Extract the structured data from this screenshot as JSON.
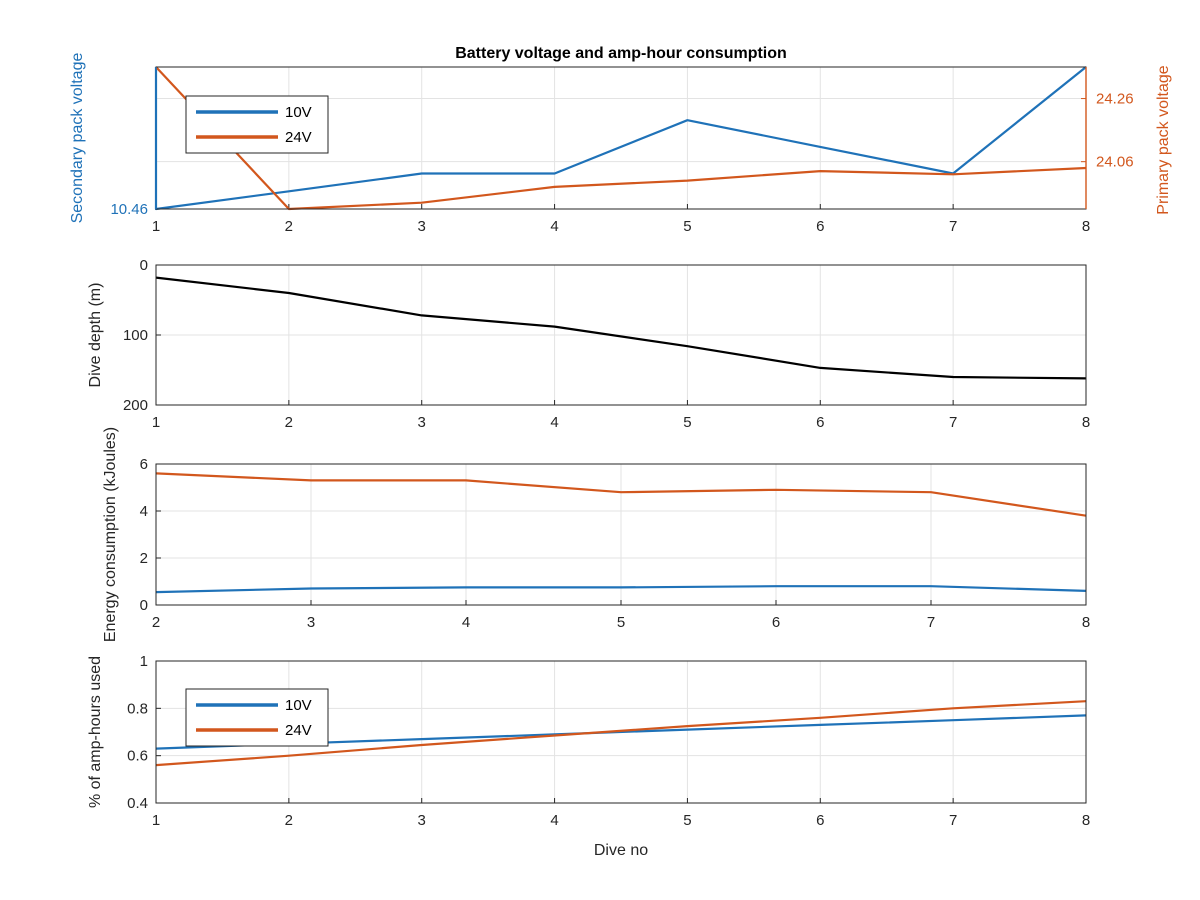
{
  "colors": {
    "blue": "#1f72b8",
    "orange": "#d2571d",
    "black": "#000000",
    "grid": "#e3e3e3",
    "axis": "#262626"
  },
  "chart_data": [
    {
      "type": "line",
      "title": "Battery voltage and amp-hour consumption",
      "xlabel": "",
      "ylabel_left": "Secondary pack voltage",
      "ylabel_right": "Primary pack voltage",
      "xlim": [
        1,
        8
      ],
      "xticks": [
        1,
        2,
        3,
        4,
        5,
        6,
        7,
        8
      ],
      "y_left": {
        "ylim": [
          10.46,
          10.62
        ],
        "ticks": [
          10.46
        ]
      },
      "y_right": {
        "ylim": [
          23.91,
          24.36
        ],
        "ticks": [
          24.06,
          24.26
        ]
      },
      "grid": "on",
      "legend": {
        "position": "top-left",
        "entries": [
          "10V",
          "24V"
        ]
      },
      "series": [
        {
          "name": "10V",
          "axis": "left",
          "color": "blue",
          "x": [
            1,
            1,
            2,
            3,
            4,
            5,
            6,
            7,
            8
          ],
          "y": [
            10.62,
            10.46,
            10.48,
            10.5,
            10.5,
            10.56,
            10.53,
            10.5,
            10.62
          ]
        },
        {
          "name": "24V",
          "axis": "right",
          "color": "orange",
          "x": [
            1,
            2,
            3,
            4,
            5,
            6,
            7,
            8
          ],
          "y": [
            24.36,
            23.91,
            23.93,
            23.98,
            24.0,
            24.03,
            24.02,
            24.04
          ]
        }
      ]
    },
    {
      "type": "line",
      "title": "",
      "xlabel": "",
      "ylabel": "Dive depth (m)",
      "xlim": [
        1,
        8
      ],
      "xticks": [
        1,
        2,
        3,
        4,
        5,
        6,
        7,
        8
      ],
      "ylim": [
        0,
        200
      ],
      "yticks": [
        0,
        100,
        200
      ],
      "y_reversed": true,
      "grid": "on",
      "series": [
        {
          "color": "black",
          "x": [
            1,
            2,
            3,
            4,
            5,
            6,
            7,
            8
          ],
          "y": [
            18,
            40,
            72,
            88,
            116,
            147,
            160,
            162
          ]
        }
      ]
    },
    {
      "type": "line",
      "title": "",
      "xlabel": "",
      "ylabel": "Energy consumption (kJoules)",
      "xlim": [
        2,
        8
      ],
      "xticks": [
        2,
        3,
        4,
        5,
        6,
        7,
        8
      ],
      "ylim": [
        0,
        6
      ],
      "yticks": [
        0,
        2,
        4,
        6
      ],
      "grid": "on",
      "series": [
        {
          "color": "orange",
          "x": [
            2,
            3,
            4,
            5,
            6,
            7,
            8
          ],
          "y": [
            5.6,
            5.3,
            5.3,
            4.8,
            4.9,
            4.8,
            3.8
          ]
        },
        {
          "color": "blue",
          "x": [
            2,
            3,
            4,
            5,
            6,
            7,
            8
          ],
          "y": [
            0.55,
            0.7,
            0.75,
            0.75,
            0.8,
            0.8,
            0.6
          ]
        }
      ]
    },
    {
      "type": "line",
      "title": "",
      "xlabel": "Dive no",
      "ylabel": "% of amp-hours used",
      "xlim": [
        1,
        8
      ],
      "xticks": [
        1,
        2,
        3,
        4,
        5,
        6,
        7,
        8
      ],
      "ylim": [
        0.4,
        1
      ],
      "yticks": [
        0.4,
        0.6,
        0.8,
        1
      ],
      "grid": "on",
      "legend": {
        "position": "top-left",
        "entries": [
          "10V",
          "24V"
        ]
      },
      "series": [
        {
          "name": "10V",
          "color": "blue",
          "x": [
            1,
            2,
            3,
            4,
            5,
            6,
            7,
            8
          ],
          "y": [
            0.63,
            0.65,
            0.67,
            0.69,
            0.71,
            0.73,
            0.75,
            0.77
          ]
        },
        {
          "name": "24V",
          "color": "orange",
          "x": [
            1,
            2,
            3,
            4,
            5,
            6,
            7,
            8
          ],
          "y": [
            0.56,
            0.6,
            0.645,
            0.685,
            0.725,
            0.76,
            0.8,
            0.83
          ]
        }
      ]
    }
  ]
}
